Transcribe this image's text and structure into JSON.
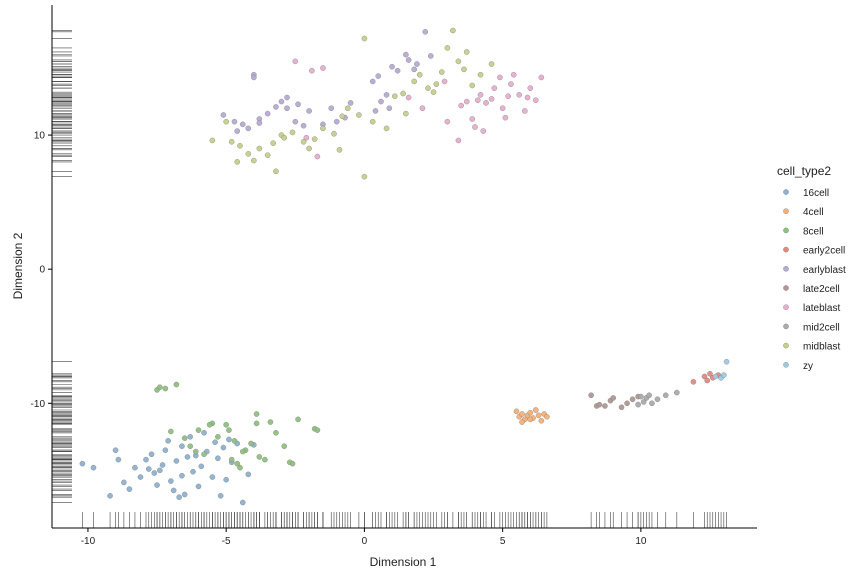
{
  "chart_data": {
    "type": "scatter",
    "xlabel": "Dimension 1",
    "ylabel": "Dimension 2",
    "xlim": [
      -11.3,
      14.2
    ],
    "ylim": [
      -19.3,
      19.7
    ],
    "xticks": [
      -10,
      -5,
      0,
      5,
      10
    ],
    "yticks": [
      -10,
      0,
      10
    ],
    "rug": true,
    "legend": {
      "title": "cell_type2",
      "position": "right"
    },
    "series": [
      {
        "name": "16cell",
        "color": "#8EB1D0",
        "points": [
          [
            -10.2,
            -14.5
          ],
          [
            -9.8,
            -14.8
          ],
          [
            -9.2,
            -16.9
          ],
          [
            -9.0,
            -13.5
          ],
          [
            -8.9,
            -14.2
          ],
          [
            -8.7,
            -15.9
          ],
          [
            -8.5,
            -16.4
          ],
          [
            -8.3,
            -14.8
          ],
          [
            -8.1,
            -15.5
          ],
          [
            -7.9,
            -14.2
          ],
          [
            -7.7,
            -13.8
          ],
          [
            -7.6,
            -15.2
          ],
          [
            -7.5,
            -16.1
          ],
          [
            -7.4,
            -15.0
          ],
          [
            -7.3,
            -14.6
          ],
          [
            -7.2,
            -13.5
          ],
          [
            -7.1,
            -12.8
          ],
          [
            -7.0,
            -15.8
          ],
          [
            -6.9,
            -16.5
          ],
          [
            -6.8,
            -14.3
          ],
          [
            -6.7,
            -17.0
          ],
          [
            -6.6,
            -15.4
          ],
          [
            -6.5,
            -16.8
          ],
          [
            -6.4,
            -14.0
          ],
          [
            -6.3,
            -12.5
          ],
          [
            -6.2,
            -15.1
          ],
          [
            -6.1,
            -13.9
          ],
          [
            -6.0,
            -16.2
          ],
          [
            -5.9,
            -14.7
          ],
          [
            -5.8,
            -12.2
          ],
          [
            -5.7,
            -13.6
          ],
          [
            -5.5,
            -15.5
          ],
          [
            -5.4,
            -12.9
          ],
          [
            -5.3,
            -14.1
          ],
          [
            -5.2,
            -16.9
          ],
          [
            -5.1,
            -13.3
          ],
          [
            -5.0,
            -15.7
          ],
          [
            -4.9,
            -12.7
          ],
          [
            -4.8,
            -14.4
          ],
          [
            -4.6,
            -13.0
          ],
          [
            -4.4,
            -17.4
          ],
          [
            -4.2,
            -15.3
          ],
          [
            -4.0,
            -13.1
          ],
          [
            -7.8,
            -14.9
          ],
          [
            -6.6,
            -13.2
          ]
        ]
      },
      {
        "name": "4cell",
        "color": "#F4B077",
        "points": [
          [
            5.5,
            -10.6
          ],
          [
            5.6,
            -11.0
          ],
          [
            5.7,
            -10.8
          ],
          [
            5.8,
            -11.2
          ],
          [
            5.9,
            -10.9
          ],
          [
            6.0,
            -10.7
          ],
          [
            6.1,
            -11.1
          ],
          [
            6.2,
            -10.5
          ],
          [
            6.3,
            -10.9
          ],
          [
            6.4,
            -11.3
          ],
          [
            6.5,
            -10.8
          ],
          [
            6.6,
            -11.0
          ],
          [
            5.7,
            -11.4
          ],
          [
            6.0,
            -11.2
          ]
        ]
      },
      {
        "name": "8cell",
        "color": "#8EC07E",
        "points": [
          [
            -7.5,
            -9.0
          ],
          [
            -7.4,
            -8.8
          ],
          [
            -7.2,
            -8.9
          ],
          [
            -6.8,
            -8.6
          ],
          [
            -7.0,
            -12.1
          ],
          [
            -6.5,
            -12.6
          ],
          [
            -6.3,
            -13.2
          ],
          [
            -6.0,
            -12.0
          ],
          [
            -5.8,
            -13.8
          ],
          [
            -5.5,
            -11.5
          ],
          [
            -5.3,
            -12.5
          ],
          [
            -5.0,
            -11.6
          ],
          [
            -4.9,
            -12.0
          ],
          [
            -4.7,
            -12.8
          ],
          [
            -4.6,
            -14.5
          ],
          [
            -4.5,
            -14.8
          ],
          [
            -4.3,
            -13.5
          ],
          [
            -4.1,
            -13.0
          ],
          [
            -3.9,
            -10.8
          ],
          [
            -3.8,
            -14.0
          ],
          [
            -3.6,
            -14.2
          ],
          [
            -3.9,
            -11.5
          ],
          [
            -3.4,
            -11.4
          ],
          [
            -2.9,
            -13.2
          ],
          [
            -2.7,
            -14.4
          ],
          [
            -2.6,
            -14.5
          ],
          [
            -2.4,
            -11.2
          ],
          [
            -1.8,
            -11.9
          ],
          [
            -1.7,
            -12.0
          ],
          [
            -4.4,
            -13.6
          ],
          [
            -3.2,
            -12.2
          ],
          [
            -5.6,
            -11.6
          ],
          [
            -6.1,
            -13.6
          ],
          [
            -4.8,
            -14.2
          ]
        ]
      },
      {
        "name": "early2cell",
        "color": "#E38A7F",
        "points": [
          [
            11.9,
            -8.4
          ],
          [
            12.3,
            -8.0
          ],
          [
            12.5,
            -7.8
          ],
          [
            12.6,
            -8.1
          ],
          [
            12.8,
            -7.9
          ],
          [
            12.4,
            -8.3
          ]
        ]
      },
      {
        "name": "earlyblast",
        "color": "#B7AAD2",
        "points": [
          [
            -5.1,
            11.5
          ],
          [
            -4.7,
            11.0
          ],
          [
            -4.6,
            10.3
          ],
          [
            -4.2,
            10.5
          ],
          [
            -4.0,
            14.5
          ],
          [
            -4.0,
            14.3
          ],
          [
            -3.8,
            11.2
          ],
          [
            -3.5,
            11.6
          ],
          [
            -3.2,
            12.1
          ],
          [
            -3.0,
            12.5
          ],
          [
            -2.8,
            12.0
          ],
          [
            -2.8,
            12.8
          ],
          [
            -2.5,
            11.0
          ],
          [
            -2.4,
            12.3
          ],
          [
            -2.2,
            10.7
          ],
          [
            -2.0,
            11.8
          ],
          [
            -1.5,
            10.8
          ],
          [
            -1.2,
            12.0
          ],
          [
            -1.0,
            11.0
          ],
          [
            -0.7,
            11.3
          ],
          [
            -0.5,
            12.4
          ],
          [
            0.3,
            14.0
          ],
          [
            0.5,
            14.4
          ],
          [
            0.6,
            12.5
          ],
          [
            0.8,
            13.0
          ],
          [
            1.0,
            15.1
          ],
          [
            1.2,
            14.8
          ],
          [
            1.5,
            16.0
          ],
          [
            1.6,
            15.6
          ],
          [
            1.8,
            14.9
          ],
          [
            1.9,
            15.3
          ],
          [
            2.2,
            17.7
          ],
          [
            2.4,
            15.9
          ],
          [
            0.9,
            12.0
          ],
          [
            0.4,
            11.8
          ],
          [
            -3.8,
            10.9
          ],
          [
            -4.4,
            10.8
          ]
        ]
      },
      {
        "name": "late2cell",
        "color": "#B09894",
        "points": [
          [
            8.2,
            -9.4
          ],
          [
            8.4,
            -10.2
          ],
          [
            8.5,
            -10.1
          ],
          [
            8.7,
            -10.2
          ],
          [
            8.9,
            -9.8
          ],
          [
            9.0,
            -9.6
          ],
          [
            9.3,
            -10.3
          ],
          [
            9.5,
            -10.0
          ],
          [
            9.7,
            -9.7
          ],
          [
            9.9,
            -9.5
          ]
        ]
      },
      {
        "name": "lateblast",
        "color": "#E6ADCE",
        "points": [
          [
            -2.5,
            15.5
          ],
          [
            -1.9,
            14.8
          ],
          [
            -1.5,
            15.0
          ],
          [
            -2.1,
            9.8
          ],
          [
            -1.7,
            8.4
          ],
          [
            1.6,
            12.8
          ],
          [
            2.1,
            12.0
          ],
          [
            2.9,
            14.0
          ],
          [
            3.0,
            11.0
          ],
          [
            3.4,
            9.6
          ],
          [
            3.5,
            12.2
          ],
          [
            3.7,
            12.5
          ],
          [
            3.9,
            11.2
          ],
          [
            4.1,
            12.6
          ],
          [
            4.2,
            13.0
          ],
          [
            4.3,
            10.3
          ],
          [
            4.4,
            12.4
          ],
          [
            4.6,
            12.7
          ],
          [
            4.7,
            13.5
          ],
          [
            4.9,
            14.3
          ],
          [
            5.0,
            12.0
          ],
          [
            5.1,
            11.3
          ],
          [
            5.3,
            13.8
          ],
          [
            5.4,
            14.5
          ],
          [
            5.6,
            13.0
          ],
          [
            5.8,
            11.8
          ],
          [
            5.9,
            12.8
          ],
          [
            6.0,
            13.5
          ],
          [
            6.2,
            12.6
          ],
          [
            6.4,
            14.3
          ],
          [
            4.0,
            10.6
          ],
          [
            5.2,
            12.9
          ]
        ]
      },
      {
        "name": "mid2cell",
        "color": "#AAAAAA",
        "points": [
          [
            9.9,
            -10.1
          ],
          [
            10.0,
            -9.5
          ],
          [
            10.1,
            -9.9
          ],
          [
            10.2,
            -9.6
          ],
          [
            10.4,
            -10.0
          ],
          [
            10.6,
            -9.7
          ],
          [
            10.9,
            -9.4
          ],
          [
            11.3,
            -9.2
          ],
          [
            10.3,
            -9.4
          ]
        ]
      },
      {
        "name": "midblast",
        "color": "#C3D08B",
        "points": [
          [
            -5.5,
            9.6
          ],
          [
            -5.0,
            11.0
          ],
          [
            -4.8,
            9.5
          ],
          [
            -4.5,
            9.2
          ],
          [
            -4.2,
            8.6
          ],
          [
            -4.0,
            8.1
          ],
          [
            -3.8,
            9.0
          ],
          [
            -3.5,
            8.5
          ],
          [
            -3.3,
            9.4
          ],
          [
            -3.0,
            10.0
          ],
          [
            -2.9,
            9.8
          ],
          [
            -2.6,
            10.2
          ],
          [
            -2.2,
            9.5
          ],
          [
            -1.8,
            9.7
          ],
          [
            -1.5,
            10.5
          ],
          [
            -1.1,
            10.1
          ],
          [
            -0.9,
            8.9
          ],
          [
            -0.8,
            11.4
          ],
          [
            -0.6,
            12.0
          ],
          [
            -0.2,
            11.5
          ],
          [
            0.0,
            6.9
          ],
          [
            0.0,
            17.2
          ],
          [
            0.3,
            11.0
          ],
          [
            0.8,
            10.5
          ],
          [
            1.1,
            12.9
          ],
          [
            1.4,
            13.1
          ],
          [
            1.5,
            11.6
          ],
          [
            1.8,
            14.0
          ],
          [
            2.0,
            14.5
          ],
          [
            2.3,
            13.5
          ],
          [
            2.5,
            13.2
          ],
          [
            2.6,
            13.8
          ],
          [
            2.8,
            14.7
          ],
          [
            3.0,
            16.5
          ],
          [
            3.2,
            17.8
          ],
          [
            3.4,
            15.5
          ],
          [
            3.6,
            14.9
          ],
          [
            3.7,
            16.2
          ],
          [
            3.9,
            13.7
          ],
          [
            4.2,
            14.5
          ],
          [
            4.6,
            15.3
          ],
          [
            -3.2,
            7.3
          ],
          [
            -2.0,
            9.0
          ],
          [
            -4.6,
            8.0
          ]
        ]
      },
      {
        "name": "zy",
        "color": "#9ECAE1",
        "points": [
          [
            12.7,
            -8.0
          ],
          [
            12.9,
            -8.1
          ],
          [
            13.0,
            -7.9
          ],
          [
            13.1,
            -6.9
          ]
        ]
      }
    ]
  }
}
